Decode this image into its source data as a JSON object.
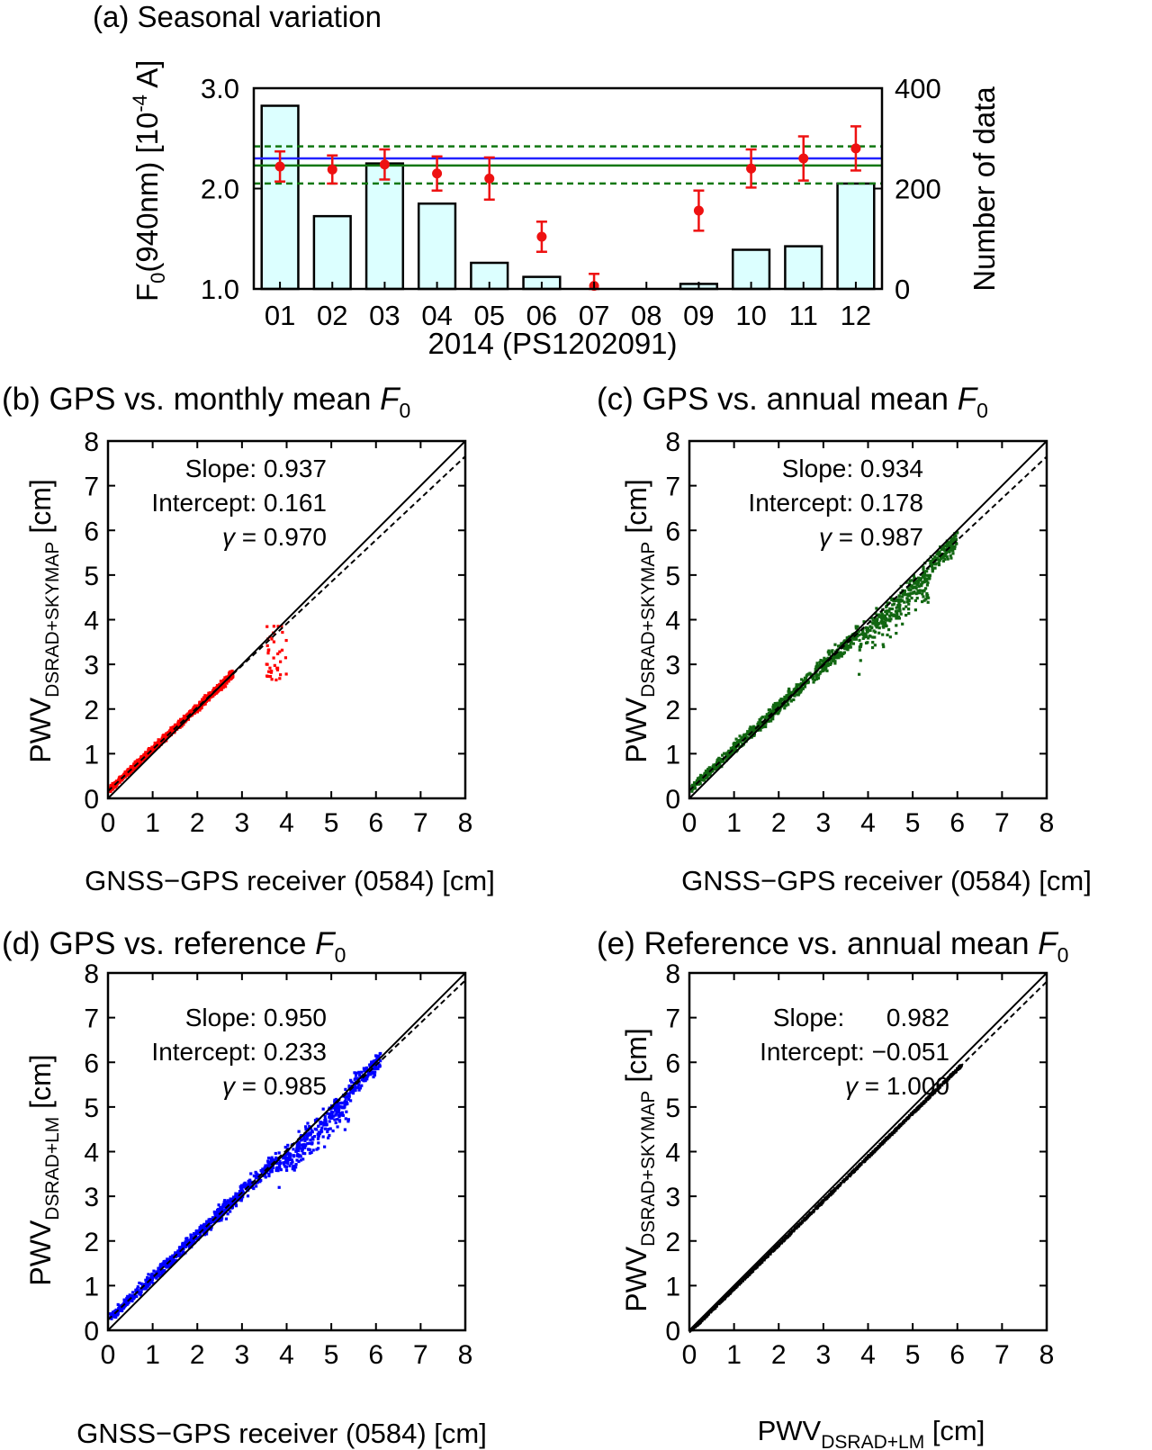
{
  "figure": {
    "panel_a": {
      "title": "(a) Seasonal variation",
      "y_left_label_main": "F",
      "y_left_label_sub": "0",
      "y_left_label_rest": "(940nm) [10",
      "y_left_label_sup": "-4",
      "y_left_label_end": " A]",
      "y_right_label": "Number of data",
      "x_label": "2014 (PS1202091)"
    },
    "panel_b": {
      "title": "(b) GPS vs. monthly mean ",
      "title_var": "F",
      "title_sub": "0",
      "xlabel": "GNSS−GPS receiver (0584) [cm]",
      "ylabel_main": "PWV",
      "ylabel_sub": "DSRAD+SKYMAP",
      "ylabel_unit": " [cm]",
      "stat_slope": "Slope: 0.937",
      "stat_intercept": "Intercept: 0.161",
      "stat_gamma_sym": "γ",
      "stat_gamma_val": " = 0.970"
    },
    "panel_c": {
      "title": "(c) GPS vs. annual mean ",
      "title_var": "F",
      "title_sub": "0",
      "xlabel": "GNSS−GPS receiver (0584) [cm]",
      "ylabel_main": "PWV",
      "ylabel_sub": "DSRAD+SKYMAP",
      "ylabel_unit": " [cm]",
      "stat_slope": "Slope: 0.934",
      "stat_intercept": "Intercept: 0.178",
      "stat_gamma_sym": "γ",
      "stat_gamma_val": " = 0.987"
    },
    "panel_d": {
      "title": "(d) GPS vs. reference ",
      "title_var": "F",
      "title_sub": "0",
      "xlabel": "GNSS−GPS receiver (0584) [cm]",
      "ylabel_main": "PWV",
      "ylabel_sub": "DSRAD+LM",
      "ylabel_unit": " [cm]",
      "stat_slope": "Slope: 0.950",
      "stat_intercept": "Intercept: 0.233",
      "stat_gamma_sym": "γ",
      "stat_gamma_val": " = 0.985"
    },
    "panel_e": {
      "title": "(e) Reference vs. annual mean ",
      "title_var": "F",
      "title_sub": "0",
      "xlabel_main": "PWV",
      "xlabel_sub": "DSRAD+LM",
      "xlabel_unit": " [cm]",
      "ylabel_main": "PWV",
      "ylabel_sub": "DSRAD+SKYMAP",
      "ylabel_unit": " [cm]",
      "stat_slope": "Slope:      0.982",
      "stat_intercept": "Intercept: −0.051",
      "stat_gamma_sym": "γ",
      "stat_gamma_val": " = 1.000"
    }
  },
  "colors": {
    "bar_fill": "#dcffff",
    "error_points": "#ee1111",
    "mean_line": "#2222ff",
    "annual_line": "#117711",
    "red_scatter": "#ff0000",
    "green_scatter": "#116611",
    "blue_scatter": "#0000ff",
    "black_scatter": "#000000"
  },
  "chart_data": [
    {
      "id": "a",
      "type": "bar",
      "title": "(a) Seasonal variation",
      "xlabel": "2014 (PS1202091)",
      "ylabel": "F0(940nm) [10-4 A]",
      "y2label": "Number of data",
      "categories": [
        "01",
        "02",
        "03",
        "04",
        "05",
        "06",
        "07",
        "08",
        "09",
        "10",
        "11",
        "12"
      ],
      "ylim": [
        1.0,
        3.0
      ],
      "y_ticks": [
        "1.0",
        "2.0",
        "3.0"
      ],
      "y2lim": [
        0,
        400
      ],
      "y2_ticks": [
        "0",
        "200",
        "400"
      ],
      "bar_counts": [
        365,
        145,
        250,
        170,
        52,
        24,
        0,
        0,
        10,
        78,
        85,
        210
      ],
      "f0_monthly": [
        2.22,
        2.19,
        2.24,
        2.15,
        2.1,
        1.52,
        1.03,
        null,
        1.78,
        2.2,
        2.3,
        2.4
      ],
      "f0_error": [
        0.15,
        0.14,
        0.15,
        0.17,
        0.21,
        0.15,
        0.12,
        null,
        0.2,
        0.19,
        0.22,
        0.22
      ],
      "reference_F0": 2.3,
      "annual_mean_F0": 2.23,
      "annual_band": [
        2.05,
        2.42
      ]
    },
    {
      "id": "b",
      "type": "scatter",
      "series_color": "#ff0000",
      "xlim": [
        0,
        8
      ],
      "ylim": [
        0,
        8
      ],
      "ticks": [
        "0",
        "1",
        "2",
        "3",
        "4",
        "5",
        "6",
        "7",
        "8"
      ],
      "slope": 0.937,
      "intercept": 0.161,
      "gamma": 0.97,
      "x_max": 4.0,
      "spread": 0.12
    },
    {
      "id": "c",
      "type": "scatter",
      "series_color": "#116611",
      "xlim": [
        0,
        8
      ],
      "ylim": [
        0,
        8
      ],
      "ticks": [
        "0",
        "1",
        "2",
        "3",
        "4",
        "5",
        "6",
        "7",
        "8"
      ],
      "slope": 0.934,
      "intercept": 0.178,
      "gamma": 0.987,
      "x_max": 6.2,
      "spread": 0.2
    },
    {
      "id": "d",
      "type": "scatter",
      "series_color": "#0000ff",
      "xlim": [
        0,
        8
      ],
      "ylim": [
        0,
        8
      ],
      "ticks": [
        "0",
        "1",
        "2",
        "3",
        "4",
        "5",
        "6",
        "7",
        "8"
      ],
      "slope": 0.95,
      "intercept": 0.233,
      "gamma": 0.985,
      "x_max": 6.3,
      "spread": 0.2
    },
    {
      "id": "e",
      "type": "scatter",
      "series_color": "#000000",
      "xlim": [
        0,
        8
      ],
      "ylim": [
        0,
        8
      ],
      "ticks": [
        "0",
        "1",
        "2",
        "3",
        "4",
        "5",
        "6",
        "7",
        "8"
      ],
      "slope": 0.982,
      "intercept": -0.051,
      "gamma": 1.0,
      "x_max": 6.3,
      "spread": 0.02
    }
  ]
}
